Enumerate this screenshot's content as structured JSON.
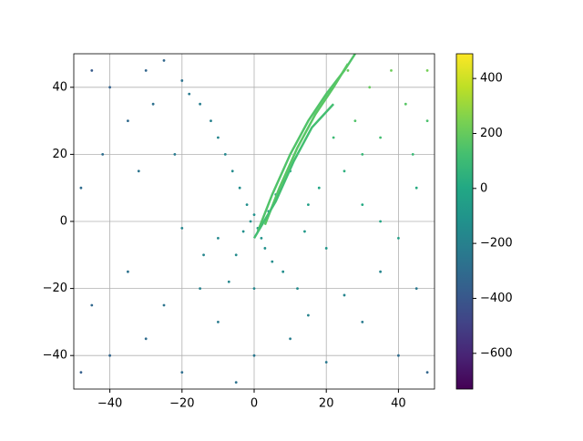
{
  "chart_data": {
    "type": "scatter",
    "xlim": [
      -50,
      50
    ],
    "ylim": [
      -50,
      50
    ],
    "xticks": [
      {
        "value": -40,
        "label": "−40"
      },
      {
        "value": -20,
        "label": "−20"
      },
      0,
      20,
      40
    ],
    "yticks": [
      {
        "value": -40,
        "label": "−40"
      },
      {
        "value": -20,
        "label": "−20"
      },
      0,
      20,
      40
    ],
    "grid": true,
    "colormap": "viridis",
    "clim": [
      -730,
      490
    ],
    "cticks": [
      {
        "value": -600,
        "label": "−600"
      },
      {
        "value": -400,
        "label": "−400"
      },
      {
        "value": -200,
        "label": "−200"
      },
      0,
      200,
      400
    ],
    "points": {
      "x": [
        -2,
        0,
        1,
        -4,
        -6,
        -8,
        -10,
        -12,
        -3,
        2,
        4,
        6,
        8,
        10,
        -1,
        3,
        -5,
        5,
        -15,
        -18,
        -7,
        8,
        12,
        -10,
        -14,
        15,
        18,
        14,
        20,
        -20,
        25,
        30,
        35,
        28,
        32,
        38,
        42,
        45,
        40,
        30,
        22,
        35,
        48,
        26,
        -40,
        -30,
        -25,
        -35,
        -45,
        -20,
        -28,
        -42,
        -32,
        -22,
        -48,
        -40,
        -30,
        -20,
        -45,
        -35,
        -25,
        -10,
        0,
        10,
        20,
        30,
        40,
        45,
        35,
        25,
        15,
        -5,
        48,
        -48,
        0,
        -15,
        48,
        44
      ],
      "y": [
        5,
        2,
        -2,
        10,
        15,
        20,
        25,
        30,
        -3,
        -5,
        3,
        8,
        12,
        15,
        0,
        -8,
        -10,
        -12,
        35,
        38,
        -18,
        -15,
        -20,
        -5,
        -10,
        5,
        10,
        -3,
        -8,
        -2,
        15,
        20,
        25,
        30,
        40,
        45,
        35,
        10,
        -5,
        5,
        25,
        0,
        30,
        45,
        40,
        45,
        48,
        30,
        45,
        42,
        35,
        20,
        15,
        20,
        10,
        -40,
        -35,
        -45,
        -25,
        -15,
        -25,
        -30,
        -40,
        -35,
        -42,
        -30,
        -40,
        -20,
        -15,
        -22,
        -28,
        -48,
        -45,
        -45,
        -20,
        -20,
        45,
        20
      ],
      "c": [
        -130,
        -120,
        -110,
        -140,
        -150,
        -170,
        -180,
        -200,
        -130,
        -110,
        -90,
        -70,
        -50,
        -30,
        -120,
        -120,
        -150,
        -140,
        -220,
        -230,
        -170,
        -140,
        -150,
        -160,
        -180,
        -40,
        -10,
        -80,
        -90,
        -180,
        40,
        80,
        120,
        150,
        200,
        220,
        170,
        20,
        -40,
        10,
        100,
        -10,
        140,
        210,
        -350,
        -330,
        -320,
        -310,
        -380,
        -270,
        -280,
        -290,
        -260,
        -230,
        -300,
        -330,
        -300,
        -290,
        -320,
        -270,
        -260,
        -230,
        -240,
        -220,
        -240,
        -230,
        -300,
        -240,
        -180,
        -180,
        -190,
        -270,
        -330,
        -360,
        -170,
        -200,
        230,
        90
      ]
    },
    "lines": [
      {
        "x": [
          1,
          5,
          10,
          15,
          20,
          25,
          28
        ],
        "y": [
          -3,
          8,
          20,
          30,
          38,
          45,
          50
        ],
        "c": 150
      },
      {
        "x": [
          3,
          7,
          12,
          17,
          22,
          26
        ],
        "y": [
          -1,
          10,
          22,
          32,
          40,
          47
        ],
        "c": 170
      },
      {
        "x": [
          0,
          6,
          11,
          16,
          22
        ],
        "y": [
          -5,
          6,
          18,
          28,
          35
        ],
        "c": 120
      }
    ]
  }
}
